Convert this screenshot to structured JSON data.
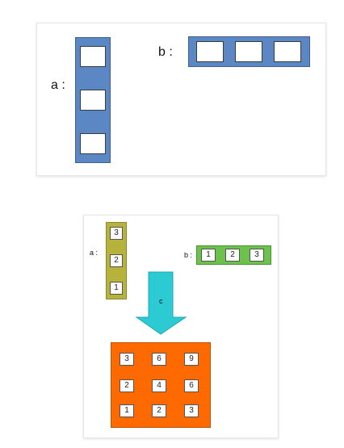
{
  "top_diagram": {
    "label_a": "a :",
    "label_b": "b :",
    "colors": {
      "vector": "#5b87c5",
      "border": "#3e5f8f"
    }
  },
  "bottom_diagram": {
    "label_a": "a :",
    "label_b": "b :",
    "arrow_label": "c",
    "a_values": [
      "3",
      "2",
      "1"
    ],
    "b_values": [
      "1",
      "2",
      "3"
    ],
    "c_matrix": [
      [
        "3",
        "6",
        "9"
      ],
      [
        "2",
        "4",
        "6"
      ],
      [
        "1",
        "2",
        "3"
      ]
    ],
    "colors": {
      "a": "#b5b33c",
      "b": "#6cc24a",
      "arrow": "#2ccad3",
      "c": "#ff6a00"
    }
  }
}
